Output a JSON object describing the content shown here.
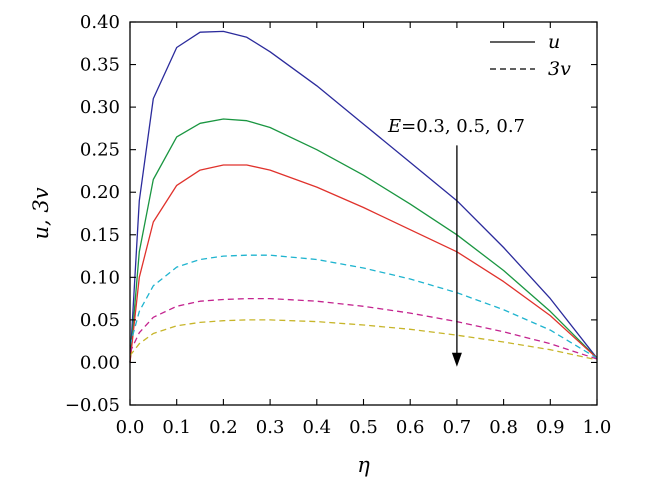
{
  "chart_data": {
    "type": "line",
    "title": "",
    "xlabel": "η",
    "ylabel": "u, 3v",
    "xlim": [
      0.0,
      1.0
    ],
    "ylim": [
      -0.05,
      0.4
    ],
    "xticks": [
      "0.0",
      "0.1",
      "0.2",
      "0.3",
      "0.4",
      "0.5",
      "0.6",
      "0.7",
      "0.8",
      "0.9",
      "1.0"
    ],
    "yticks": [
      "−0.05",
      "0.00",
      "0.05",
      "0.10",
      "0.15",
      "0.20",
      "0.25",
      "0.30",
      "0.35",
      "0.40"
    ],
    "grid": false,
    "legend": {
      "position": "top-right",
      "entries": [
        {
          "label": "u",
          "style": "solid"
        },
        {
          "label": "3v",
          "style": "dashed"
        }
      ]
    },
    "annotation": {
      "text_var": "E",
      "text_rest": "=0.3, 0.5, 0.7",
      "arrow": {
        "x": 0.7,
        "y_from": 0.255,
        "y_to": -0.005
      }
    },
    "series": [
      {
        "style": "solid",
        "color": "#2b2b9c",
        "x": [
          0,
          0.02,
          0.05,
          0.1,
          0.15,
          0.2,
          0.25,
          0.3,
          0.4,
          0.5,
          0.6,
          0.7,
          0.8,
          0.9,
          1.0
        ],
        "y": [
          0,
          0.19,
          0.31,
          0.37,
          0.388,
          0.389,
          0.382,
          0.365,
          0.325,
          0.28,
          0.235,
          0.19,
          0.135,
          0.075,
          0.005
        ]
      },
      {
        "style": "solid",
        "color": "#1a9641",
        "x": [
          0,
          0.02,
          0.05,
          0.1,
          0.15,
          0.2,
          0.25,
          0.3,
          0.4,
          0.5,
          0.6,
          0.7,
          0.8,
          0.9,
          1.0
        ],
        "y": [
          0,
          0.13,
          0.215,
          0.265,
          0.281,
          0.286,
          0.284,
          0.276,
          0.25,
          0.22,
          0.186,
          0.15,
          0.108,
          0.06,
          0.005
        ]
      },
      {
        "style": "solid",
        "color": "#e0322c",
        "x": [
          0,
          0.02,
          0.05,
          0.1,
          0.15,
          0.2,
          0.25,
          0.3,
          0.4,
          0.5,
          0.6,
          0.7,
          0.8,
          0.9,
          1.0
        ],
        "y": [
          0,
          0.1,
          0.165,
          0.208,
          0.226,
          0.232,
          0.232,
          0.226,
          0.206,
          0.182,
          0.156,
          0.13,
          0.095,
          0.055,
          0.005
        ]
      },
      {
        "style": "dashed",
        "color": "#1fb4cf",
        "x": [
          0,
          0.02,
          0.05,
          0.1,
          0.15,
          0.2,
          0.25,
          0.3,
          0.4,
          0.5,
          0.6,
          0.7,
          0.8,
          0.9,
          1.0
        ],
        "y": [
          0.02,
          0.06,
          0.09,
          0.112,
          0.121,
          0.125,
          0.126,
          0.126,
          0.121,
          0.111,
          0.098,
          0.082,
          0.062,
          0.038,
          0.005
        ]
      },
      {
        "style": "dashed",
        "color": "#c4248f",
        "x": [
          0,
          0.02,
          0.05,
          0.1,
          0.15,
          0.2,
          0.25,
          0.3,
          0.4,
          0.5,
          0.6,
          0.7,
          0.8,
          0.9,
          1.0
        ],
        "y": [
          0.012,
          0.035,
          0.053,
          0.066,
          0.072,
          0.074,
          0.075,
          0.075,
          0.072,
          0.066,
          0.058,
          0.048,
          0.036,
          0.022,
          0.004
        ]
      },
      {
        "style": "dashed",
        "color": "#c7b52a",
        "x": [
          0,
          0.02,
          0.05,
          0.1,
          0.15,
          0.2,
          0.25,
          0.3,
          0.4,
          0.5,
          0.6,
          0.7,
          0.8,
          0.9,
          1.0
        ],
        "y": [
          0.008,
          0.022,
          0.034,
          0.043,
          0.047,
          0.049,
          0.05,
          0.05,
          0.048,
          0.044,
          0.039,
          0.032,
          0.024,
          0.015,
          0.003
        ]
      }
    ]
  }
}
